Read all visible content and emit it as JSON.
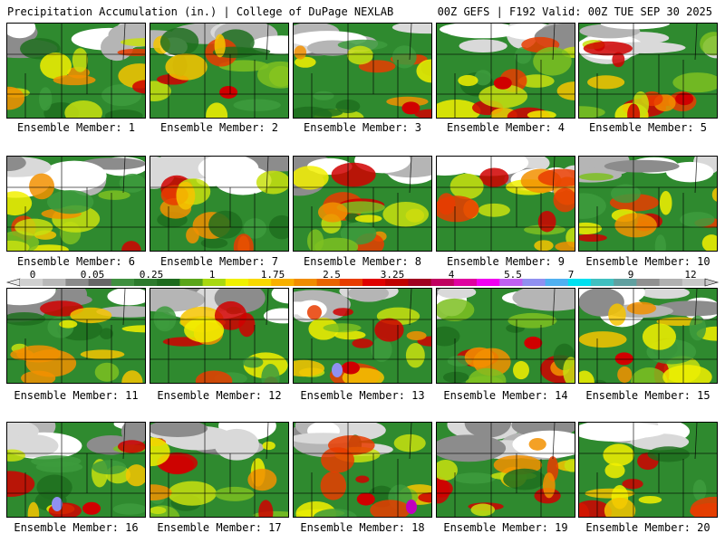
{
  "header": {
    "title": "Precipitation Accumulation (in.) | College of DuPage NEXLAB",
    "run_info": "00Z GEFS | F192 Valid: 00Z TUE SEP 30 2025"
  },
  "panels": [
    {
      "label": "Ensemble Member: 1"
    },
    {
      "label": "Ensemble Member: 2"
    },
    {
      "label": "Ensemble Member: 3"
    },
    {
      "label": "Ensemble Member: 4"
    },
    {
      "label": "Ensemble Member: 5"
    },
    {
      "label": "Ensemble Member: 6"
    },
    {
      "label": "Ensemble Member: 7"
    },
    {
      "label": "Ensemble Member: 8"
    },
    {
      "label": "Ensemble Member: 9"
    },
    {
      "label": "Ensemble Member: 10"
    },
    {
      "label": "Ensemble Member: 11"
    },
    {
      "label": "Ensemble Member: 12"
    },
    {
      "label": "Ensemble Member: 13"
    },
    {
      "label": "Ensemble Member: 14"
    },
    {
      "label": "Ensemble Member: 15"
    },
    {
      "label": "Ensemble Member: 16"
    },
    {
      "label": "Ensemble Member: 17"
    },
    {
      "label": "Ensemble Member: 18"
    },
    {
      "label": "Ensemble Member: 19"
    },
    {
      "label": "Ensemble Member: 20"
    }
  ],
  "scale": {
    "tick_labels": [
      "0",
      "0.05",
      "0.25",
      "1",
      "1.75",
      "2.5",
      "3.25",
      "4",
      "5.5",
      "7",
      "9",
      "12"
    ],
    "colors": [
      "#d0d0d0",
      "#b8b8b8",
      "#8a8a8a",
      "#666666",
      "#3f8f3f",
      "#2d7a2d",
      "#1e6b1e",
      "#5aa51a",
      "#a8d810",
      "#f0f000",
      "#f8d800",
      "#f8b000",
      "#f08c00",
      "#e86400",
      "#e83c00",
      "#e00000",
      "#c00000",
      "#a00020",
      "#c00060",
      "#e000a0",
      "#f000f0",
      "#c060f0",
      "#9090f0",
      "#50b0f0",
      "#00e0f0",
      "#40c0c0",
      "#60a0a0",
      "#909090",
      "#b0b0b0",
      "#c8c8c8"
    ]
  }
}
